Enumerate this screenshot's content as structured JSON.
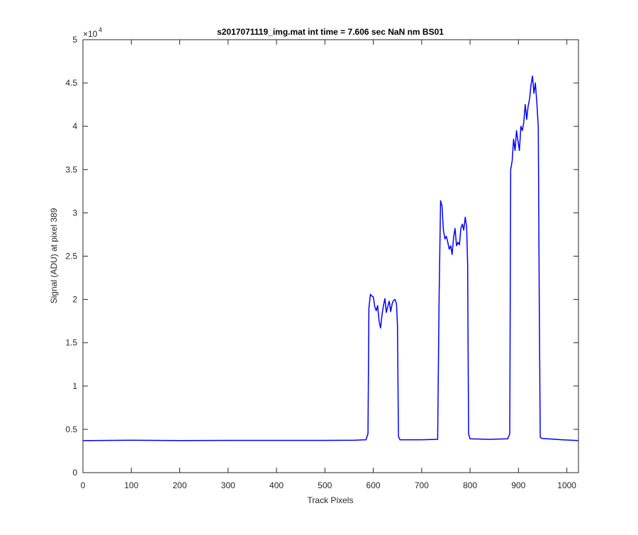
{
  "chart_data": {
    "type": "line",
    "title": "s2017071119_img.mat int time = 7.606 sec  NaN nm BS01",
    "xlabel": "Track Pixels",
    "ylabel": "Signal (ADU) at pixel 389",
    "y_exponent_label": "×10",
    "y_exponent_power": "4",
    "xlim": [
      0,
      1024
    ],
    "ylim": [
      0,
      50000
    ],
    "xticks": [
      0,
      100,
      200,
      300,
      400,
      500,
      600,
      700,
      800,
      900,
      1000
    ],
    "xtick_labels": [
      "0",
      "100",
      "200",
      "300",
      "400",
      "500",
      "600",
      "700",
      "800",
      "900",
      "1000"
    ],
    "yticks": [
      0,
      5000,
      10000,
      15000,
      20000,
      25000,
      30000,
      35000,
      40000,
      45000,
      50000
    ],
    "ytick_labels": [
      "0",
      "0.5",
      "1",
      "1.5",
      "2",
      "2.5",
      "3",
      "3.5",
      "4",
      "4.5",
      "5"
    ],
    "grid": false,
    "line_color": "#0000ff",
    "series": [
      {
        "x": [
          0,
          100,
          200,
          300,
          400,
          500,
          560,
          585,
          589,
          591,
          594,
          597,
          600,
          603,
          606,
          609,
          612,
          615,
          618,
          621,
          624,
          627,
          630,
          633,
          636,
          639,
          642,
          645,
          648,
          650,
          652,
          655,
          700,
          733,
          736,
          739,
          742,
          745,
          748,
          751,
          754,
          757,
          760,
          763,
          766,
          769,
          772,
          775,
          778,
          781,
          784,
          787,
          790,
          793,
          795,
          797,
          800,
          840,
          878,
          882,
          884,
          887,
          890,
          893,
          896,
          899,
          902,
          905,
          908,
          911,
          914,
          917,
          920,
          923,
          926,
          929,
          932,
          935,
          938,
          941,
          943,
          945,
          948,
          960,
          990,
          1024
        ],
        "y": [
          3700,
          3750,
          3700,
          3720,
          3720,
          3720,
          3750,
          3800,
          4500,
          19000,
          20600,
          20400,
          20300,
          19200,
          18700,
          19300,
          17500,
          16700,
          18200,
          19300,
          20100,
          18500,
          19200,
          19800,
          18600,
          19500,
          19900,
          20000,
          19500,
          17000,
          4200,
          3800,
          3800,
          3850,
          20000,
          31400,
          30800,
          28000,
          27000,
          27300,
          26600,
          25800,
          26200,
          25200,
          27200,
          28200,
          26200,
          26600,
          26300,
          28200,
          28700,
          28000,
          29500,
          28300,
          24000,
          4500,
          3900,
          3850,
          3900,
          4500,
          35000,
          36000,
          38500,
          37200,
          39500,
          38300,
          37200,
          40000,
          39500,
          40500,
          42500,
          40800,
          42300,
          43200,
          44800,
          45800,
          43800,
          45000,
          42700,
          40000,
          20000,
          4100,
          3950,
          3900,
          3800,
          3700
        ]
      }
    ]
  }
}
